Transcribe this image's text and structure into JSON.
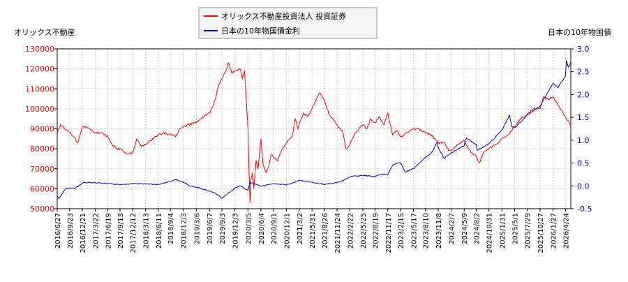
{
  "chart_data": {
    "type": "line",
    "left_axis_title": "オリックス不動産",
    "right_axis_title": "日本の10年物国債",
    "legend": {
      "placement": "top-center",
      "entries": [
        "オリックス不動産投資法人 投資証券",
        "日本の10年物国債金利"
      ]
    },
    "grid": true,
    "y_left": {
      "min": 50000,
      "max": 130000,
      "ticks": [
        50000,
        60000,
        70000,
        80000,
        90000,
        100000,
        110000,
        120000,
        130000
      ]
    },
    "y_right": {
      "min": -0.5,
      "max": 3.0,
      "ticks": [
        "-0.5",
        "0.0",
        "0.5",
        "1.0",
        "1.5",
        "2.0",
        "2.5",
        "3.0"
      ]
    },
    "x_range": [
      "2016/6/27",
      "2026/6/1"
    ],
    "x_ticks": [
      "2016/6/27",
      "2016/9/23",
      "2016/12/21",
      "2017/3/22",
      "2017/6/19",
      "2017/9/13",
      "2017/12/12",
      "2018/3/13",
      "2018/6/11",
      "2018/9/4",
      "2018/12/3",
      "2019/3/6",
      "2019/6/7",
      "2019/9/3",
      "2019/12/3",
      "2020/3/5",
      "2020/6/4",
      "2020/9/1",
      "2020/12/1",
      "2021/3/2",
      "2021/5/31",
      "2021/8/26",
      "2021/11/24",
      "2022/2/22",
      "2022/5/25",
      "2022/8/19",
      "2022/11/17",
      "2023/2/15",
      "2023/5/17",
      "2023/8/10",
      "2023/11/8",
      "2024/2/7",
      "2024/5/9",
      "2024/8/2",
      "2024/10/31",
      "2025/1/31",
      "2025/5/1",
      "2025/7/29",
      "2025/10/27",
      "2026/1/27",
      "2026/4/24"
    ],
    "series": [
      {
        "name": "オリックス不動産投資法人 投資証券",
        "axis": "left",
        "color": "#ff0000",
        "points": [
          [
            "2016/6/27",
            88000
          ],
          [
            "2016/7/20",
            92000
          ],
          [
            "2016/9/10",
            89000
          ],
          [
            "2016/10/20",
            86000
          ],
          [
            "2016/11/20",
            83000
          ],
          [
            "2016/12/21",
            91000
          ],
          [
            "2017/2/10",
            90000
          ],
          [
            "2017/3/22",
            88000
          ],
          [
            "2017/5/10",
            88000
          ],
          [
            "2017/6/19",
            86000
          ],
          [
            "2017/7/20",
            82000
          ],
          [
            "2017/8/20",
            80000
          ],
          [
            "2017/9/13",
            80000
          ],
          [
            "2017/10/20",
            78000
          ],
          [
            "2017/11/20",
            77500
          ],
          [
            "2017/12/12",
            78000
          ],
          [
            "2018/1/10",
            85000
          ],
          [
            "2018/2/10",
            81000
          ],
          [
            "2018/3/13",
            82000
          ],
          [
            "2018/4/20",
            84000
          ],
          [
            "2018/5/20",
            86000
          ],
          [
            "2018/6/11",
            87000
          ],
          [
            "2018/7/20",
            88000
          ],
          [
            "2018/8/20",
            87000
          ],
          [
            "2018/9/4",
            87500
          ],
          [
            "2018/10/10",
            86000
          ],
          [
            "2018/11/10",
            90000
          ],
          [
            "2018/12/3",
            91000
          ],
          [
            "2019/1/10",
            92000
          ],
          [
            "2019/2/10",
            93000
          ],
          [
            "2019/3/6",
            93000
          ],
          [
            "2019/4/10",
            95000
          ],
          [
            "2019/5/10",
            97000
          ],
          [
            "2019/6/7",
            98000
          ],
          [
            "2019/6/30",
            101000
          ],
          [
            "2019/7/20",
            105000
          ],
          [
            "2019/8/10",
            112000
          ],
          [
            "2019/9/3",
            115000
          ],
          [
            "2019/10/1",
            119000
          ],
          [
            "2019/10/20",
            123000
          ],
          [
            "2019/11/10",
            118000
          ],
          [
            "2019/12/3",
            119000
          ],
          [
            "2020/1/10",
            120000
          ],
          [
            "2020/1/25",
            115000
          ],
          [
            "2020/2/10",
            119000
          ],
          [
            "2020/2/25",
            100000
          ],
          [
            "2020/3/5",
            90000
          ],
          [
            "2020/3/12",
            70000
          ],
          [
            "2020/3/19",
            53000
          ],
          [
            "2020/3/26",
            65000
          ],
          [
            "2020/4/5",
            68000
          ],
          [
            "2020/4/15",
            60000
          ],
          [
            "2020/5/1",
            74000
          ],
          [
            "2020/5/15",
            70000
          ],
          [
            "2020/6/4",
            85000
          ],
          [
            "2020/6/20",
            72000
          ],
          [
            "2020/7/10",
            68000
          ],
          [
            "2020/7/30",
            71000
          ],
          [
            "2020/8/15",
            77000
          ],
          [
            "2020/9/1",
            76000
          ],
          [
            "2020/10/1",
            74000
          ],
          [
            "2020/11/1",
            80000
          ],
          [
            "2020/12/1",
            83000
          ],
          [
            "2021/1/10",
            86000
          ],
          [
            "2021/2/1",
            95000
          ],
          [
            "2021/2/20",
            90000
          ],
          [
            "2021/3/2",
            93000
          ],
          [
            "2021/4/1",
            98000
          ],
          [
            "2021/5/1",
            96000
          ],
          [
            "2021/5/31",
            100000
          ],
          [
            "2021/7/1",
            105000
          ],
          [
            "2021/7/25",
            108000
          ],
          [
            "2021/8/26",
            104000
          ],
          [
            "2021/10/1",
            97000
          ],
          [
            "2021/11/1",
            94000
          ],
          [
            "2021/11/24",
            92000
          ],
          [
            "2022/1/5",
            88000
          ],
          [
            "2022/1/25",
            80000
          ],
          [
            "2022/2/22",
            82000
          ],
          [
            "2022/4/1",
            88000
          ],
          [
            "2022/5/25",
            92000
          ],
          [
            "2022/6/20",
            90000
          ],
          [
            "2022/7/20",
            95000
          ],
          [
            "2022/8/19",
            93000
          ],
          [
            "2022/9/20",
            96000
          ],
          [
            "2022/10/20",
            92000
          ],
          [
            "2022/11/17",
            98000
          ],
          [
            "2022/12/20",
            87000
          ],
          [
            "2023/1/20",
            89000
          ],
          [
            "2023/2/15",
            86000
          ],
          [
            "2023/4/1",
            88000
          ],
          [
            "2023/5/17",
            90000
          ],
          [
            "2023/6/20",
            90000
          ],
          [
            "2023/8/10",
            88000
          ],
          [
            "2023/9/20",
            87000
          ],
          [
            "2023/11/8",
            83000
          ],
          [
            "2023/12/20",
            83000
          ],
          [
            "2024/1/20",
            79000
          ],
          [
            "2024/2/7",
            79000
          ],
          [
            "2024/3/20",
            82000
          ],
          [
            "2024/5/9",
            84000
          ],
          [
            "2024/6/20",
            79000
          ],
          [
            "2024/8/2",
            76000
          ],
          [
            "2024/8/25",
            73000
          ],
          [
            "2024/9/20",
            78000
          ],
          [
            "2024/10/31",
            80000
          ],
          [
            "2024/12/10",
            82000
          ],
          [
            "2025/1/31",
            85000
          ],
          [
            "2025/3/15",
            87000
          ],
          [
            "2025/5/1",
            91000
          ],
          [
            "2025/6/10",
            95000
          ],
          [
            "2025/7/29",
            97000
          ],
          [
            "2025/9/10",
            100000
          ],
          [
            "2025/10/27",
            100000
          ],
          [
            "2025/11/20",
            106000
          ],
          [
            "2025/12/20",
            105000
          ],
          [
            "2026/1/27",
            106000
          ],
          [
            "2026/3/1",
            102000
          ],
          [
            "2026/4/24",
            96000
          ],
          [
            "2026/6/1",
            92000
          ]
        ]
      },
      {
        "name": "日本の10年物国債金利",
        "axis": "right",
        "color": "#0000cc",
        "points": [
          [
            "2016/6/27",
            -0.22
          ],
          [
            "2016/7/10",
            -0.28
          ],
          [
            "2016/7/30",
            -0.18
          ],
          [
            "2016/8/20",
            -0.08
          ],
          [
            "2016/9/23",
            -0.05
          ],
          [
            "2016/11/1",
            -0.05
          ],
          [
            "2016/12/21",
            0.06
          ],
          [
            "2017/2/10",
            0.08
          ],
          [
            "2017/3/22",
            0.07
          ],
          [
            "2017/6/19",
            0.05
          ],
          [
            "2017/9/13",
            0.02
          ],
          [
            "2017/12/12",
            0.05
          ],
          [
            "2018/3/13",
            0.04
          ],
          [
            "2018/6/11",
            0.03
          ],
          [
            "2018/9/4",
            0.1
          ],
          [
            "2018/10/10",
            0.14
          ],
          [
            "2018/12/3",
            0.08
          ],
          [
            "2019/1/20",
            0.0
          ],
          [
            "2019/3/6",
            -0.03
          ],
          [
            "2019/6/7",
            -0.11
          ],
          [
            "2019/8/10",
            -0.2
          ],
          [
            "2019/9/3",
            -0.27
          ],
          [
            "2019/10/1",
            -0.2
          ],
          [
            "2019/12/3",
            -0.05
          ],
          [
            "2020/1/10",
            0.0
          ],
          [
            "2020/3/5",
            -0.1
          ],
          [
            "2020/3/19",
            0.08
          ],
          [
            "2020/6/4",
            0.0
          ],
          [
            "2020/9/1",
            0.04
          ],
          [
            "2020/12/1",
            0.02
          ],
          [
            "2021/2/20",
            0.1
          ],
          [
            "2021/3/2",
            0.12
          ],
          [
            "2021/5/31",
            0.08
          ],
          [
            "2021/8/26",
            0.03
          ],
          [
            "2021/11/24",
            0.07
          ],
          [
            "2022/1/10",
            0.12
          ],
          [
            "2022/2/22",
            0.2
          ],
          [
            "2022/5/25",
            0.23
          ],
          [
            "2022/8/19",
            0.2
          ],
          [
            "2022/9/20",
            0.25
          ],
          [
            "2022/11/17",
            0.25
          ],
          [
            "2022/12/20",
            0.45
          ],
          [
            "2023/1/20",
            0.5
          ],
          [
            "2023/2/15",
            0.5
          ],
          [
            "2023/3/20",
            0.3
          ],
          [
            "2023/5/17",
            0.38
          ],
          [
            "2023/8/10",
            0.62
          ],
          [
            "2023/9/20",
            0.72
          ],
          [
            "2023/10/31",
            0.95
          ],
          [
            "2023/11/8",
            0.85
          ],
          [
            "2023/12/20",
            0.6
          ],
          [
            "2024/2/7",
            0.72
          ],
          [
            "2024/5/9",
            0.88
          ],
          [
            "2024/5/25",
            1.05
          ],
          [
            "2024/8/2",
            0.9
          ],
          [
            "2024/8/10",
            0.78
          ],
          [
            "2024/10/31",
            0.92
          ],
          [
            "2025/1/31",
            1.22
          ],
          [
            "2025/3/25",
            1.55
          ],
          [
            "2025/4/10",
            1.3
          ],
          [
            "2025/5/1",
            1.27
          ],
          [
            "2025/7/29",
            1.55
          ],
          [
            "2025/10/27",
            1.75
          ],
          [
            "2025/12/20",
            2.05
          ],
          [
            "2026/1/27",
            2.25
          ],
          [
            "2026/3/1",
            2.15
          ],
          [
            "2026/4/24",
            2.4
          ],
          [
            "2026/5/1",
            2.75
          ],
          [
            "2026/5/15",
            2.6
          ],
          [
            "2026/6/1",
            2.7
          ]
        ]
      }
    ]
  }
}
